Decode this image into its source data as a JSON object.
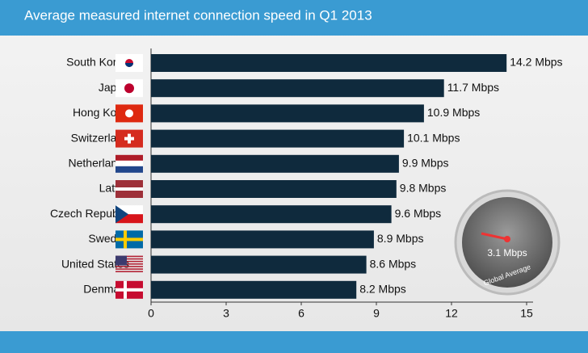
{
  "chart_data": {
    "type": "bar",
    "orientation": "horizontal",
    "subtitle": "Average measured internet connection speed in Q1 2013",
    "categories": [
      "South Korea",
      "Japan",
      "Hong Kong",
      "Switzerland",
      "Netherlands",
      "Latvia",
      "Czech Republic",
      "Sweden",
      "United States",
      "Denmark"
    ],
    "values": [
      14.2,
      11.7,
      10.9,
      10.1,
      9.9,
      9.8,
      9.6,
      8.9,
      8.6,
      8.2
    ],
    "value_labels": [
      "14.2 Mbps",
      "11.7 Mbps",
      "10.9 Mbps",
      "10.1 Mbps",
      "9.9 Mbps",
      "9.8 Mbps",
      "9.6 Mbps",
      "8.9 Mbps",
      "8.6 Mbps",
      "8.2 Mbps"
    ],
    "color": "#0f2a3d",
    "xlim": [
      0,
      15
    ],
    "xticks": [
      0,
      3,
      6,
      9,
      12,
      15
    ],
    "gauge_label": "3.1 Mbps",
    "gauge_caption": "Global Average"
  }
}
